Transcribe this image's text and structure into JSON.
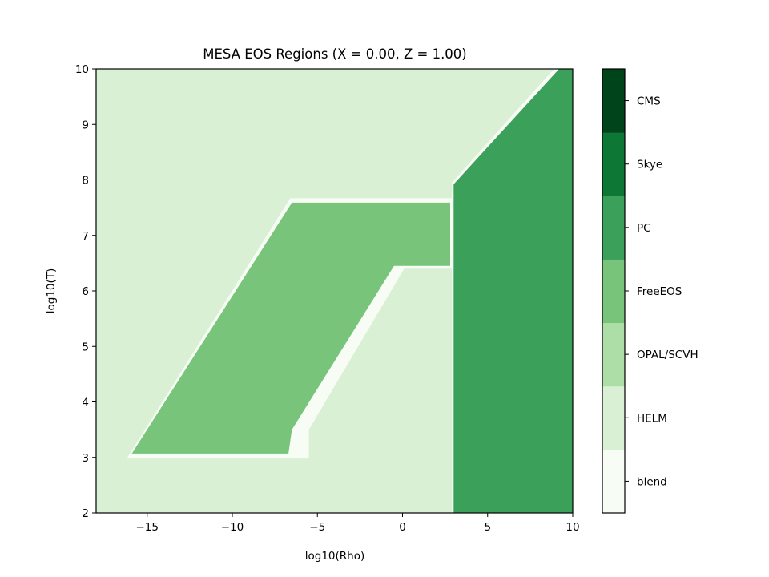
{
  "chart_data": {
    "type": "heatmap",
    "title": "MESA EOS Regions (X = 0.00, Z = 1.00)",
    "xlabel": "log10(Rho)",
    "ylabel": "log10(T)",
    "xlim": [
      -18,
      10
    ],
    "ylim": [
      2,
      10
    ],
    "xticks": [
      -15,
      -10,
      -5,
      0,
      5,
      10
    ],
    "xtick_labels": [
      "−15",
      "−10",
      "−5",
      "0",
      "5",
      "10"
    ],
    "yticks": [
      2,
      3,
      4,
      5,
      6,
      7,
      8,
      9,
      10
    ],
    "ytick_labels": [
      "2",
      "3",
      "4",
      "5",
      "6",
      "7",
      "8",
      "9",
      "10"
    ],
    "grid": false,
    "colorbar": {
      "position": "right",
      "levels": [
        {
          "name": "blend",
          "color": "#f7fcf5"
        },
        {
          "name": "HELM",
          "color": "#d9f0d4"
        },
        {
          "name": "OPAL/SCVH",
          "color": "#aedea7"
        },
        {
          "name": "FreeEOS",
          "color": "#77c47a"
        },
        {
          "name": "PC",
          "color": "#3aa05a"
        },
        {
          "name": "Skye",
          "color": "#0d7835"
        },
        {
          "name": "CMS",
          "color": "#00441b"
        }
      ]
    },
    "regions": [
      {
        "eos": "HELM",
        "polygon": [
          [
            -18,
            2
          ],
          [
            10,
            2
          ],
          [
            10,
            10
          ],
          [
            -18,
            10
          ]
        ]
      },
      {
        "eos": "blend",
        "polygon": [
          [
            -16.2,
            2.98
          ],
          [
            -6.6,
            7.67
          ],
          [
            2.9,
            7.67
          ],
          [
            2.9,
            7.95
          ],
          [
            8.9,
            10
          ],
          [
            10,
            10
          ],
          [
            10,
            2
          ],
          [
            2.9,
            2
          ],
          [
            2.9,
            6.4
          ],
          [
            0.1,
            6.4
          ],
          [
            -5.5,
            3.5
          ],
          [
            -5.5,
            2.98
          ]
        ]
      },
      {
        "eos": "FreeEOS",
        "polygon": [
          [
            -15.9,
            3.07
          ],
          [
            -6.7,
            3.07
          ],
          [
            -6.5,
            3.5
          ],
          [
            -0.5,
            6.45
          ],
          [
            2.8,
            6.45
          ],
          [
            2.8,
            7.59
          ],
          [
            -6.5,
            7.59
          ]
        ]
      },
      {
        "eos": "PC",
        "polygon": [
          [
            3.0,
            2
          ],
          [
            10,
            2
          ],
          [
            10,
            10
          ],
          [
            9.2,
            10
          ],
          [
            3.0,
            7.92
          ]
        ]
      }
    ]
  }
}
